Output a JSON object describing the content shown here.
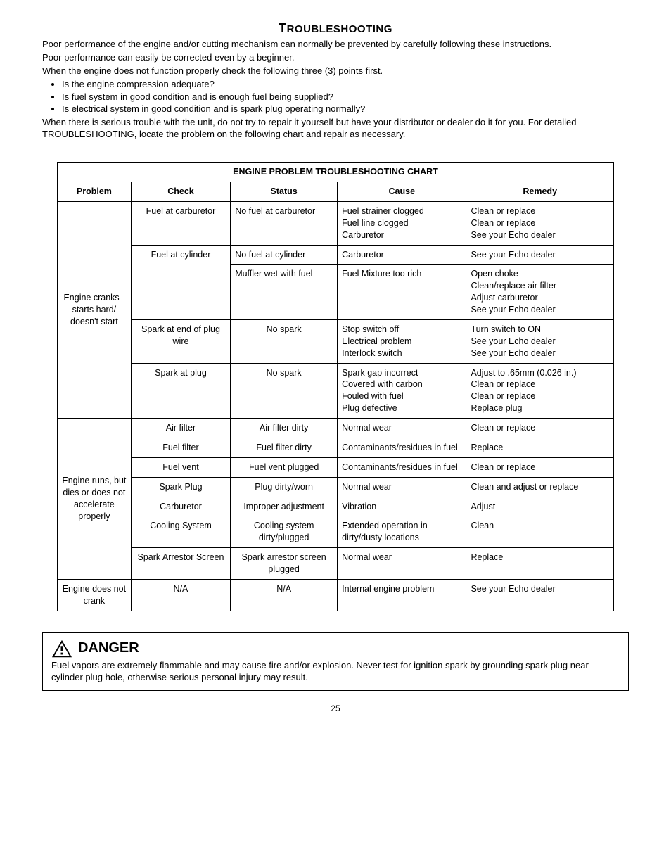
{
  "title_main": "T",
  "title_rest": "ROUBLESHOOTING",
  "intro": {
    "p1": "Poor performance of the engine and/or cutting mechanism can normally be prevented by carefully following these instructions.",
    "p2": "Poor performance can easily be corrected even by a beginner.",
    "p3": "When the engine does not function properly check the following three (3) points first.",
    "b1": "Is the engine compression adequate?",
    "b2": "Is fuel system in good condition and is enough fuel being supplied?",
    "b3": "Is electrical system in good condition and is spark plug operating normally?",
    "p4": "When there is serious trouble with the unit, do not try to repair it yourself but have your distributor or dealer do it for you. For detailed TROUBLESHOOTING, locate the problem on the following chart and repair as necessary."
  },
  "chart": {
    "title": "ENGINE PROBLEM TROUBLESHOOTING CHART",
    "headers": {
      "problem": "Problem",
      "check": "Check",
      "status": "Status",
      "cause": "Cause",
      "remedy": "Remedy"
    },
    "section1": {
      "problem": "Engine cranks - starts hard/ doesn't start",
      "r1": {
        "check": "Fuel at carburetor",
        "status": "No fuel at carburetor",
        "cause": "Fuel strainer clogged\nFuel line clogged\nCarburetor",
        "remedy": "Clean or replace\nClean or replace\nSee your Echo dealer"
      },
      "r2": {
        "check": "Fuel at cylinder",
        "status": "No fuel at cylinder",
        "cause": "Carburetor",
        "remedy": "See your Echo dealer"
      },
      "r3": {
        "status": "Muffler wet with fuel",
        "cause": "Fuel Mixture too rich",
        "remedy": "Open choke\nClean/replace air filter\nAdjust carburetor\nSee your Echo dealer"
      },
      "r4": {
        "check": "Spark at end of plug wire",
        "status": "No spark",
        "cause": "Stop switch off\nElectrical problem\nInterlock switch",
        "remedy": "Turn switch to ON\nSee your Echo dealer\nSee your Echo dealer"
      },
      "r5": {
        "check": "Spark at plug",
        "status": "No spark",
        "cause": "Spark gap incorrect\nCovered with carbon\nFouled with fuel\nPlug defective",
        "remedy": "Adjust to .65mm (0.026 in.)\nClean or replace\nClean or replace\nReplace plug"
      }
    },
    "section2": {
      "problem": "Engine runs, but dies or does not accelerate properly",
      "r1": {
        "check": "Air filter",
        "status": "Air filter dirty",
        "cause": "Normal wear",
        "remedy": "Clean or replace"
      },
      "r2": {
        "check": "Fuel filter",
        "status": "Fuel filter dirty",
        "cause": "Contaminants/residues  in fuel",
        "remedy": "Replace"
      },
      "r3": {
        "check": "Fuel vent",
        "status": "Fuel vent plugged",
        "cause": "Contaminants/residues in fuel",
        "remedy": "Clean or replace"
      },
      "r4": {
        "check": "Spark Plug",
        "status": "Plug dirty/worn",
        "cause": "Normal wear",
        "remedy": "Clean and adjust or replace"
      },
      "r5": {
        "check": "Carburetor",
        "status": "Improper adjustment",
        "cause": "Vibration",
        "remedy": "Adjust"
      },
      "r6": {
        "check": "Cooling System",
        "status": "Cooling system dirty/plugged",
        "cause": "Extended operation in dirty/dusty locations",
        "remedy": "Clean"
      },
      "r7": {
        "check": "Spark Arrestor Screen",
        "status": "Spark arrestor screen plugged",
        "cause": "Normal wear",
        "remedy": "Replace"
      }
    },
    "section3": {
      "problem": "Engine does not crank",
      "check": "N/A",
      "status": "N/A",
      "cause": "Internal engine problem",
      "remedy": "See your Echo dealer"
    }
  },
  "danger": {
    "label": "DANGER",
    "text": "Fuel vapors are extremely flammable and may cause fire and/or explosion. Never test for ignition spark by grounding spark plug near cylinder plug hole, otherwise serious personal injury may result."
  },
  "page_number": "25"
}
